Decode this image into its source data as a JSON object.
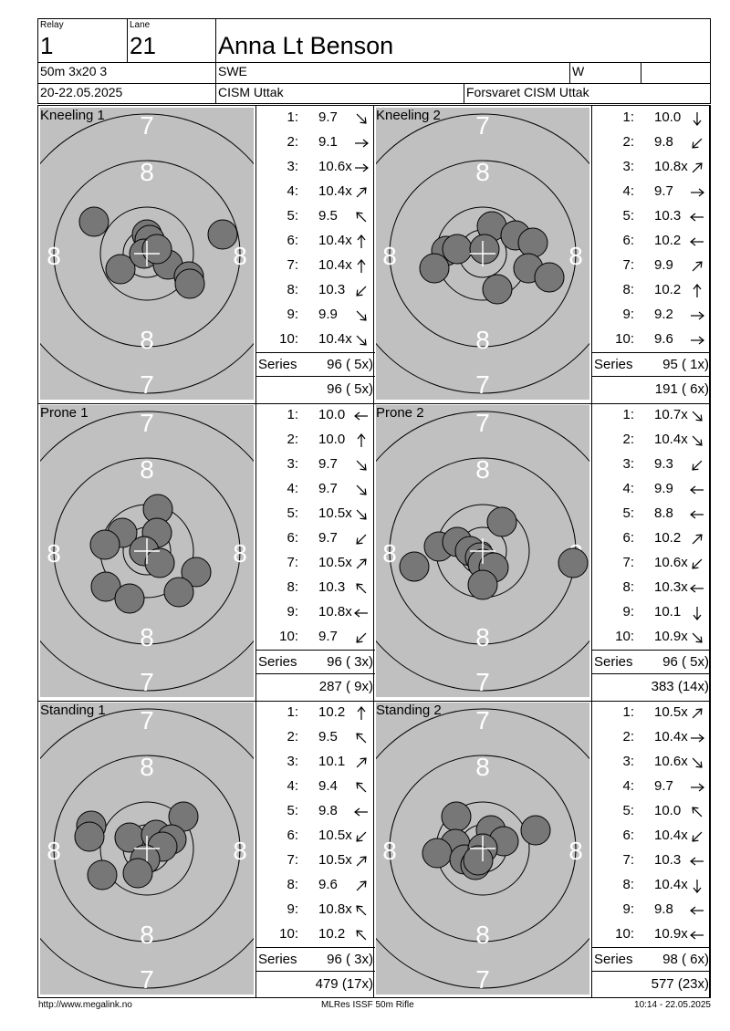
{
  "header": {
    "relay_label": "Relay",
    "relay": "1",
    "lane_label": "Lane",
    "lane": "21",
    "name": "Anna Lt Benson",
    "event": "50m 3x20 3",
    "nation": "SWE",
    "gender": "W",
    "date": "20-22.05.2025",
    "competition": "CISM Uttak",
    "club": "Forsvaret CISM Uttak"
  },
  "panels": [
    {
      "label": "Kneeling 1",
      "shots": [
        {
          "n": "1:",
          "v": "9.7",
          "a": "se"
        },
        {
          "n": "2:",
          "v": "9.1",
          "a": "e"
        },
        {
          "n": "3:",
          "v": "10.6x",
          "a": "e"
        },
        {
          "n": "4:",
          "v": "10.4x",
          "a": "ne"
        },
        {
          "n": "5:",
          "v": "9.5",
          "a": "nw"
        },
        {
          "n": "6:",
          "v": "10.4x",
          "a": "n"
        },
        {
          "n": "7:",
          "v": "10.4x",
          "a": "n"
        },
        {
          "n": "8:",
          "v": "10.3",
          "a": "sw"
        },
        {
          "n": "9:",
          "v": "9.9",
          "a": "se"
        },
        {
          "n": "10:",
          "v": "10.4x",
          "a": "se"
        }
      ],
      "series_label": "Series",
      "series": "96 ( 5x)",
      "total": "96 ( 5x)",
      "holes": [
        [
          -58,
          -35
        ],
        [
          0,
          -21
        ],
        [
          3,
          -15
        ],
        [
          83,
          -21
        ],
        [
          -29,
          17
        ],
        [
          -3,
          0
        ],
        [
          23,
          12
        ],
        [
          46,
          25
        ],
        [
          47,
          33
        ],
        [
          11,
          -5
        ]
      ]
    },
    {
      "label": "Kneeling 2",
      "shots": [
        {
          "n": "1:",
          "v": "10.0",
          "a": "s"
        },
        {
          "n": "2:",
          "v": "9.8",
          "a": "sw"
        },
        {
          "n": "3:",
          "v": "10.8x",
          "a": "ne"
        },
        {
          "n": "4:",
          "v": "9.7",
          "a": "e"
        },
        {
          "n": "5:",
          "v": "10.3",
          "a": "w"
        },
        {
          "n": "6:",
          "v": "10.2",
          "a": "w"
        },
        {
          "n": "7:",
          "v": "9.9",
          "a": "ne"
        },
        {
          "n": "8:",
          "v": "10.2",
          "a": "n"
        },
        {
          "n": "9:",
          "v": "9.2",
          "a": "e"
        },
        {
          "n": "10:",
          "v": "9.6",
          "a": "e"
        }
      ],
      "series_label": "Series",
      "series": "95 ( 1x)",
      "total": "191 ( 6x)",
      "holes": [
        [
          10,
          -30
        ],
        [
          -40,
          -3
        ],
        [
          -53,
          16
        ],
        [
          -28,
          -5
        ],
        [
          2,
          -5
        ],
        [
          36,
          -20
        ],
        [
          55,
          -12
        ],
        [
          50,
          16
        ],
        [
          73,
          26
        ],
        [
          16,
          39
        ]
      ]
    },
    {
      "label": "Prone 1",
      "shots": [
        {
          "n": "1:",
          "v": "10.0",
          "a": "w"
        },
        {
          "n": "2:",
          "v": "10.0",
          "a": "n"
        },
        {
          "n": "3:",
          "v": "9.7",
          "a": "se"
        },
        {
          "n": "4:",
          "v": "9.7",
          "a": "se"
        },
        {
          "n": "5:",
          "v": "10.5x",
          "a": "se"
        },
        {
          "n": "6:",
          "v": "9.7",
          "a": "sw"
        },
        {
          "n": "7:",
          "v": "10.5x",
          "a": "ne"
        },
        {
          "n": "8:",
          "v": "10.3",
          "a": "nw"
        },
        {
          "n": "9:",
          "v": "10.8x",
          "a": "w"
        },
        {
          "n": "10:",
          "v": "9.7",
          "a": "sw"
        }
      ],
      "series_label": "Series",
      "series": "96 ( 3x)",
      "total": "287 ( 9x)",
      "holes": [
        [
          12,
          -46
        ],
        [
          -27,
          -20
        ],
        [
          -46,
          -7
        ],
        [
          11,
          -20
        ],
        [
          -3,
          0
        ],
        [
          14,
          13
        ],
        [
          54,
          23
        ],
        [
          -45,
          39
        ],
        [
          -19,
          52
        ],
        [
          35,
          45
        ]
      ]
    },
    {
      "label": "Prone 2",
      "shots": [
        {
          "n": "1:",
          "v": "10.7x",
          "a": "se"
        },
        {
          "n": "2:",
          "v": "10.4x",
          "a": "se"
        },
        {
          "n": "3:",
          "v": "9.3",
          "a": "sw"
        },
        {
          "n": "4:",
          "v": "9.9",
          "a": "w"
        },
        {
          "n": "5:",
          "v": "8.8",
          "a": "w"
        },
        {
          "n": "6:",
          "v": "10.2",
          "a": "ne"
        },
        {
          "n": "7:",
          "v": "10.6x",
          "a": "sw"
        },
        {
          "n": "8:",
          "v": "10.3x",
          "a": "w"
        },
        {
          "n": "9:",
          "v": "10.1",
          "a": "s"
        },
        {
          "n": "10:",
          "v": "10.9x",
          "a": "se"
        }
      ],
      "series_label": "Series",
      "series": "96 ( 5x)",
      "total": "383 (14x)",
      "holes": [
        [
          21,
          -32
        ],
        [
          -48,
          -5
        ],
        [
          -28,
          -10
        ],
        [
          -14,
          0
        ],
        [
          -3,
          7
        ],
        [
          0,
          14
        ],
        [
          12,
          18
        ],
        [
          -75,
          17
        ],
        [
          99,
          13
        ],
        [
          0,
          37
        ]
      ]
    },
    {
      "label": "Standing 1",
      "shots": [
        {
          "n": "1:",
          "v": "10.2",
          "a": "n"
        },
        {
          "n": "2:",
          "v": "9.5",
          "a": "nw"
        },
        {
          "n": "3:",
          "v": "10.1",
          "a": "ne"
        },
        {
          "n": "4:",
          "v": "9.4",
          "a": "nw"
        },
        {
          "n": "5:",
          "v": "9.8",
          "a": "w"
        },
        {
          "n": "6:",
          "v": "10.5x",
          "a": "sw"
        },
        {
          "n": "7:",
          "v": "10.5x",
          "a": "ne"
        },
        {
          "n": "8:",
          "v": "9.6",
          "a": "ne"
        },
        {
          "n": "9:",
          "v": "10.8x",
          "a": "nw"
        },
        {
          "n": "10:",
          "v": "10.2",
          "a": "nw"
        }
      ],
      "series_label": "Series",
      "series": "96 ( 3x)",
      "total": "479 (17x)",
      "holes": [
        [
          -61,
          -25
        ],
        [
          -63,
          -13
        ],
        [
          -19,
          -12
        ],
        [
          10,
          -15
        ],
        [
          40,
          -35
        ],
        [
          27,
          -10
        ],
        [
          17,
          -2
        ],
        [
          -2,
          12
        ],
        [
          -10,
          27
        ],
        [
          -49,
          29
        ]
      ]
    },
    {
      "label": "Standing 2",
      "shots": [
        {
          "n": "1:",
          "v": "10.5x",
          "a": "ne"
        },
        {
          "n": "2:",
          "v": "10.4x",
          "a": "e"
        },
        {
          "n": "3:",
          "v": "10.6x",
          "a": "se"
        },
        {
          "n": "4:",
          "v": "9.7",
          "a": "e"
        },
        {
          "n": "5:",
          "v": "10.0",
          "a": "nw"
        },
        {
          "n": "6:",
          "v": "10.4x",
          "a": "sw"
        },
        {
          "n": "7:",
          "v": "10.3",
          "a": "w"
        },
        {
          "n": "8:",
          "v": "10.4x",
          "a": "s"
        },
        {
          "n": "9:",
          "v": "9.8",
          "a": "w"
        },
        {
          "n": "10:",
          "v": "10.9x",
          "a": "w"
        }
      ],
      "series_label": "Series",
      "series": "98 ( 6x)",
      "total": "577 (23x)",
      "holes": [
        [
          -29,
          -35
        ],
        [
          9,
          -20
        ],
        [
          23,
          -8
        ],
        [
          58,
          -20
        ],
        [
          -30,
          -5
        ],
        [
          -50,
          5
        ],
        [
          -20,
          12
        ],
        [
          -8,
          18
        ],
        [
          0,
          0
        ],
        [
          -5,
          13
        ]
      ]
    }
  ],
  "footer": {
    "left": "http://www.megalink.no",
    "center": "MLRes ISSF 50m Rifle",
    "right": "10:14 - 22.05.2025"
  }
}
